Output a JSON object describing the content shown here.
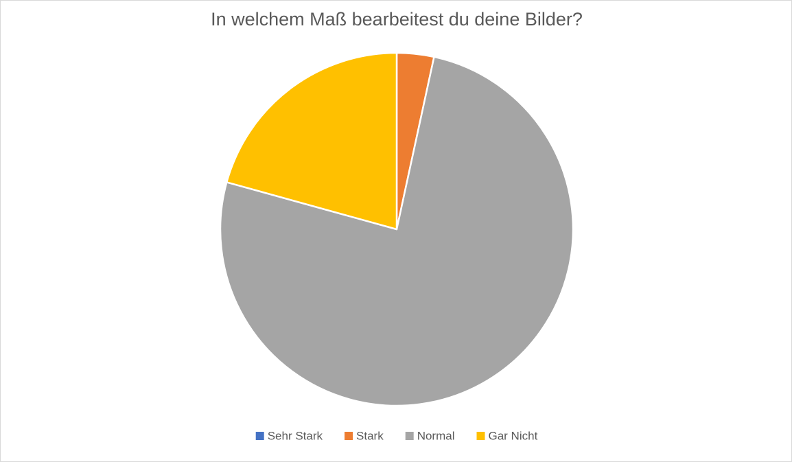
{
  "chart_data": {
    "type": "pie",
    "title": "In welchem Maß bearbeitest du deine Bilder?",
    "categories": [
      "Sehr Stark",
      "Stark",
      "Normal",
      "Gar Nicht"
    ],
    "values": [
      0,
      3.4,
      75.9,
      20.7
    ],
    "colors": [
      "#4472c4",
      "#ed7d31",
      "#a5a5a5",
      "#ffc000"
    ],
    "legend": "bottom"
  }
}
